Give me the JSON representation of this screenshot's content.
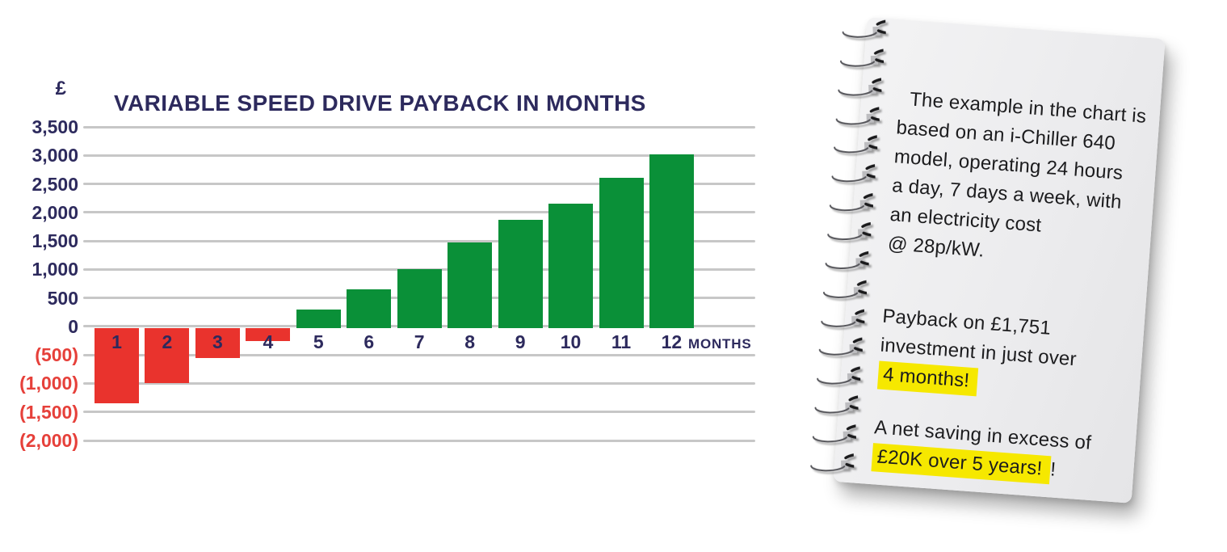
{
  "chart_data": {
    "type": "bar",
    "title": "VARIABLE SPEED DRIVE PAYBACK IN MONTHS",
    "currency_axis_label": "£",
    "x_axis_suffix": "MONTHS",
    "categories": [
      "1",
      "2",
      "3",
      "4",
      "5",
      "6",
      "7",
      "8",
      "9",
      "10",
      "11",
      "12"
    ],
    "values": [
      -1350,
      -1000,
      -550,
      -250,
      300,
      650,
      1000,
      1475,
      1875,
      2150,
      2600,
      3025
    ],
    "ylim": [
      -2000,
      3500
    ],
    "ytick_interval": 500,
    "ytick_labels_top_to_bottom": [
      "3,500",
      "3,000",
      "2,500",
      "2,000",
      "1,500",
      "1,000",
      "500",
      "0",
      "(500)",
      "(1,000)",
      "(1,500)",
      "(2,000)"
    ],
    "grid": true,
    "legend": "none",
    "colors": {
      "positive_bar": "#0a9038",
      "negative_bar": "#e9332d",
      "axis_text": "#2d2a5d",
      "negative_axis_text": "#e6403a",
      "gridline": "#c7c7c7"
    }
  },
  "note": {
    "p1_lines": [
      "The example in the chart is",
      "based on an i-Chiller 640",
      "model, operating 24 hours",
      "a day, 7 days a week, with",
      "an electricity cost",
      "@ 28p/kW."
    ],
    "p2_lines": [
      "Payback on £1,751",
      "investment in just over"
    ],
    "p2_highlight": "4 months!",
    "p3_line": "A net saving in excess of",
    "p3_highlight": "£20K over 5 years!",
    "p3_suffix": "!",
    "highlight_color": "#f6e800"
  }
}
